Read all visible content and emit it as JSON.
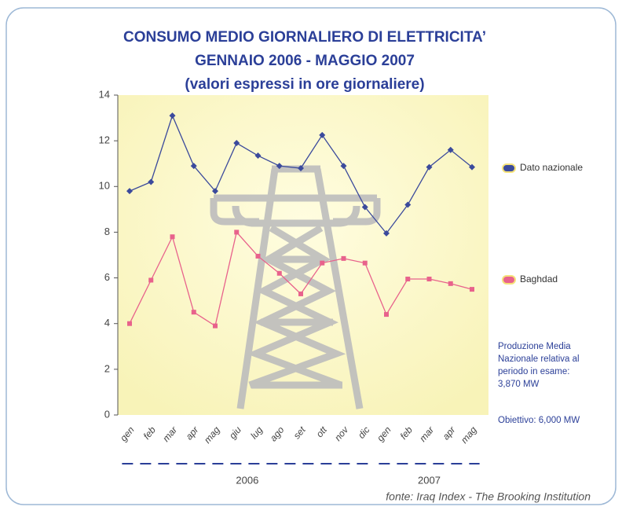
{
  "chart_data": {
    "type": "line",
    "title": [
      "CONSUMO MEDIO GIORNALIERO DI ELETTRICITA’",
      "GENNAIO 2006 - MAGGIO 2007",
      "(valori espressi in ore giornaliere)"
    ],
    "categories": [
      "gen",
      "feb",
      "mar",
      "apr",
      "mag",
      "giu",
      "lug",
      "ago",
      "set",
      "ott",
      "nov",
      "dic",
      "gen",
      "feb",
      "mar",
      "apr",
      "mag"
    ],
    "x_groups": [
      {
        "label": "2006",
        "categories": 12
      },
      {
        "label": "2007",
        "categories": 5
      }
    ],
    "series": [
      {
        "name": "Dato nazionale",
        "color": "#3b4a9c",
        "values": [
          9.8,
          10.2,
          13.1,
          10.9,
          9.8,
          11.9,
          11.35,
          10.9,
          10.8,
          12.25,
          10.9,
          9.1,
          7.95,
          9.2,
          10.85,
          11.6,
          10.85
        ]
      },
      {
        "name": "Baghdad",
        "color": "#e8628c",
        "values": [
          4.0,
          5.9,
          7.8,
          4.5,
          3.9,
          8.0,
          6.95,
          6.2,
          5.3,
          6.65,
          6.85,
          6.65,
          4.4,
          5.95,
          5.95,
          5.75,
          5.5
        ]
      }
    ],
    "ylim": [
      0,
      14
    ],
    "yticks": [
      0,
      2,
      4,
      6,
      8,
      10,
      12,
      14
    ],
    "legend": "right",
    "notes": [
      "Produzione Media",
      "Nazionale relativa al",
      "periodo in esame:",
      "3,870 MW"
    ],
    "target": "Obiettivo: 6,000 MW",
    "source": "fonte: Iraq Index - The Brooking Institution"
  }
}
